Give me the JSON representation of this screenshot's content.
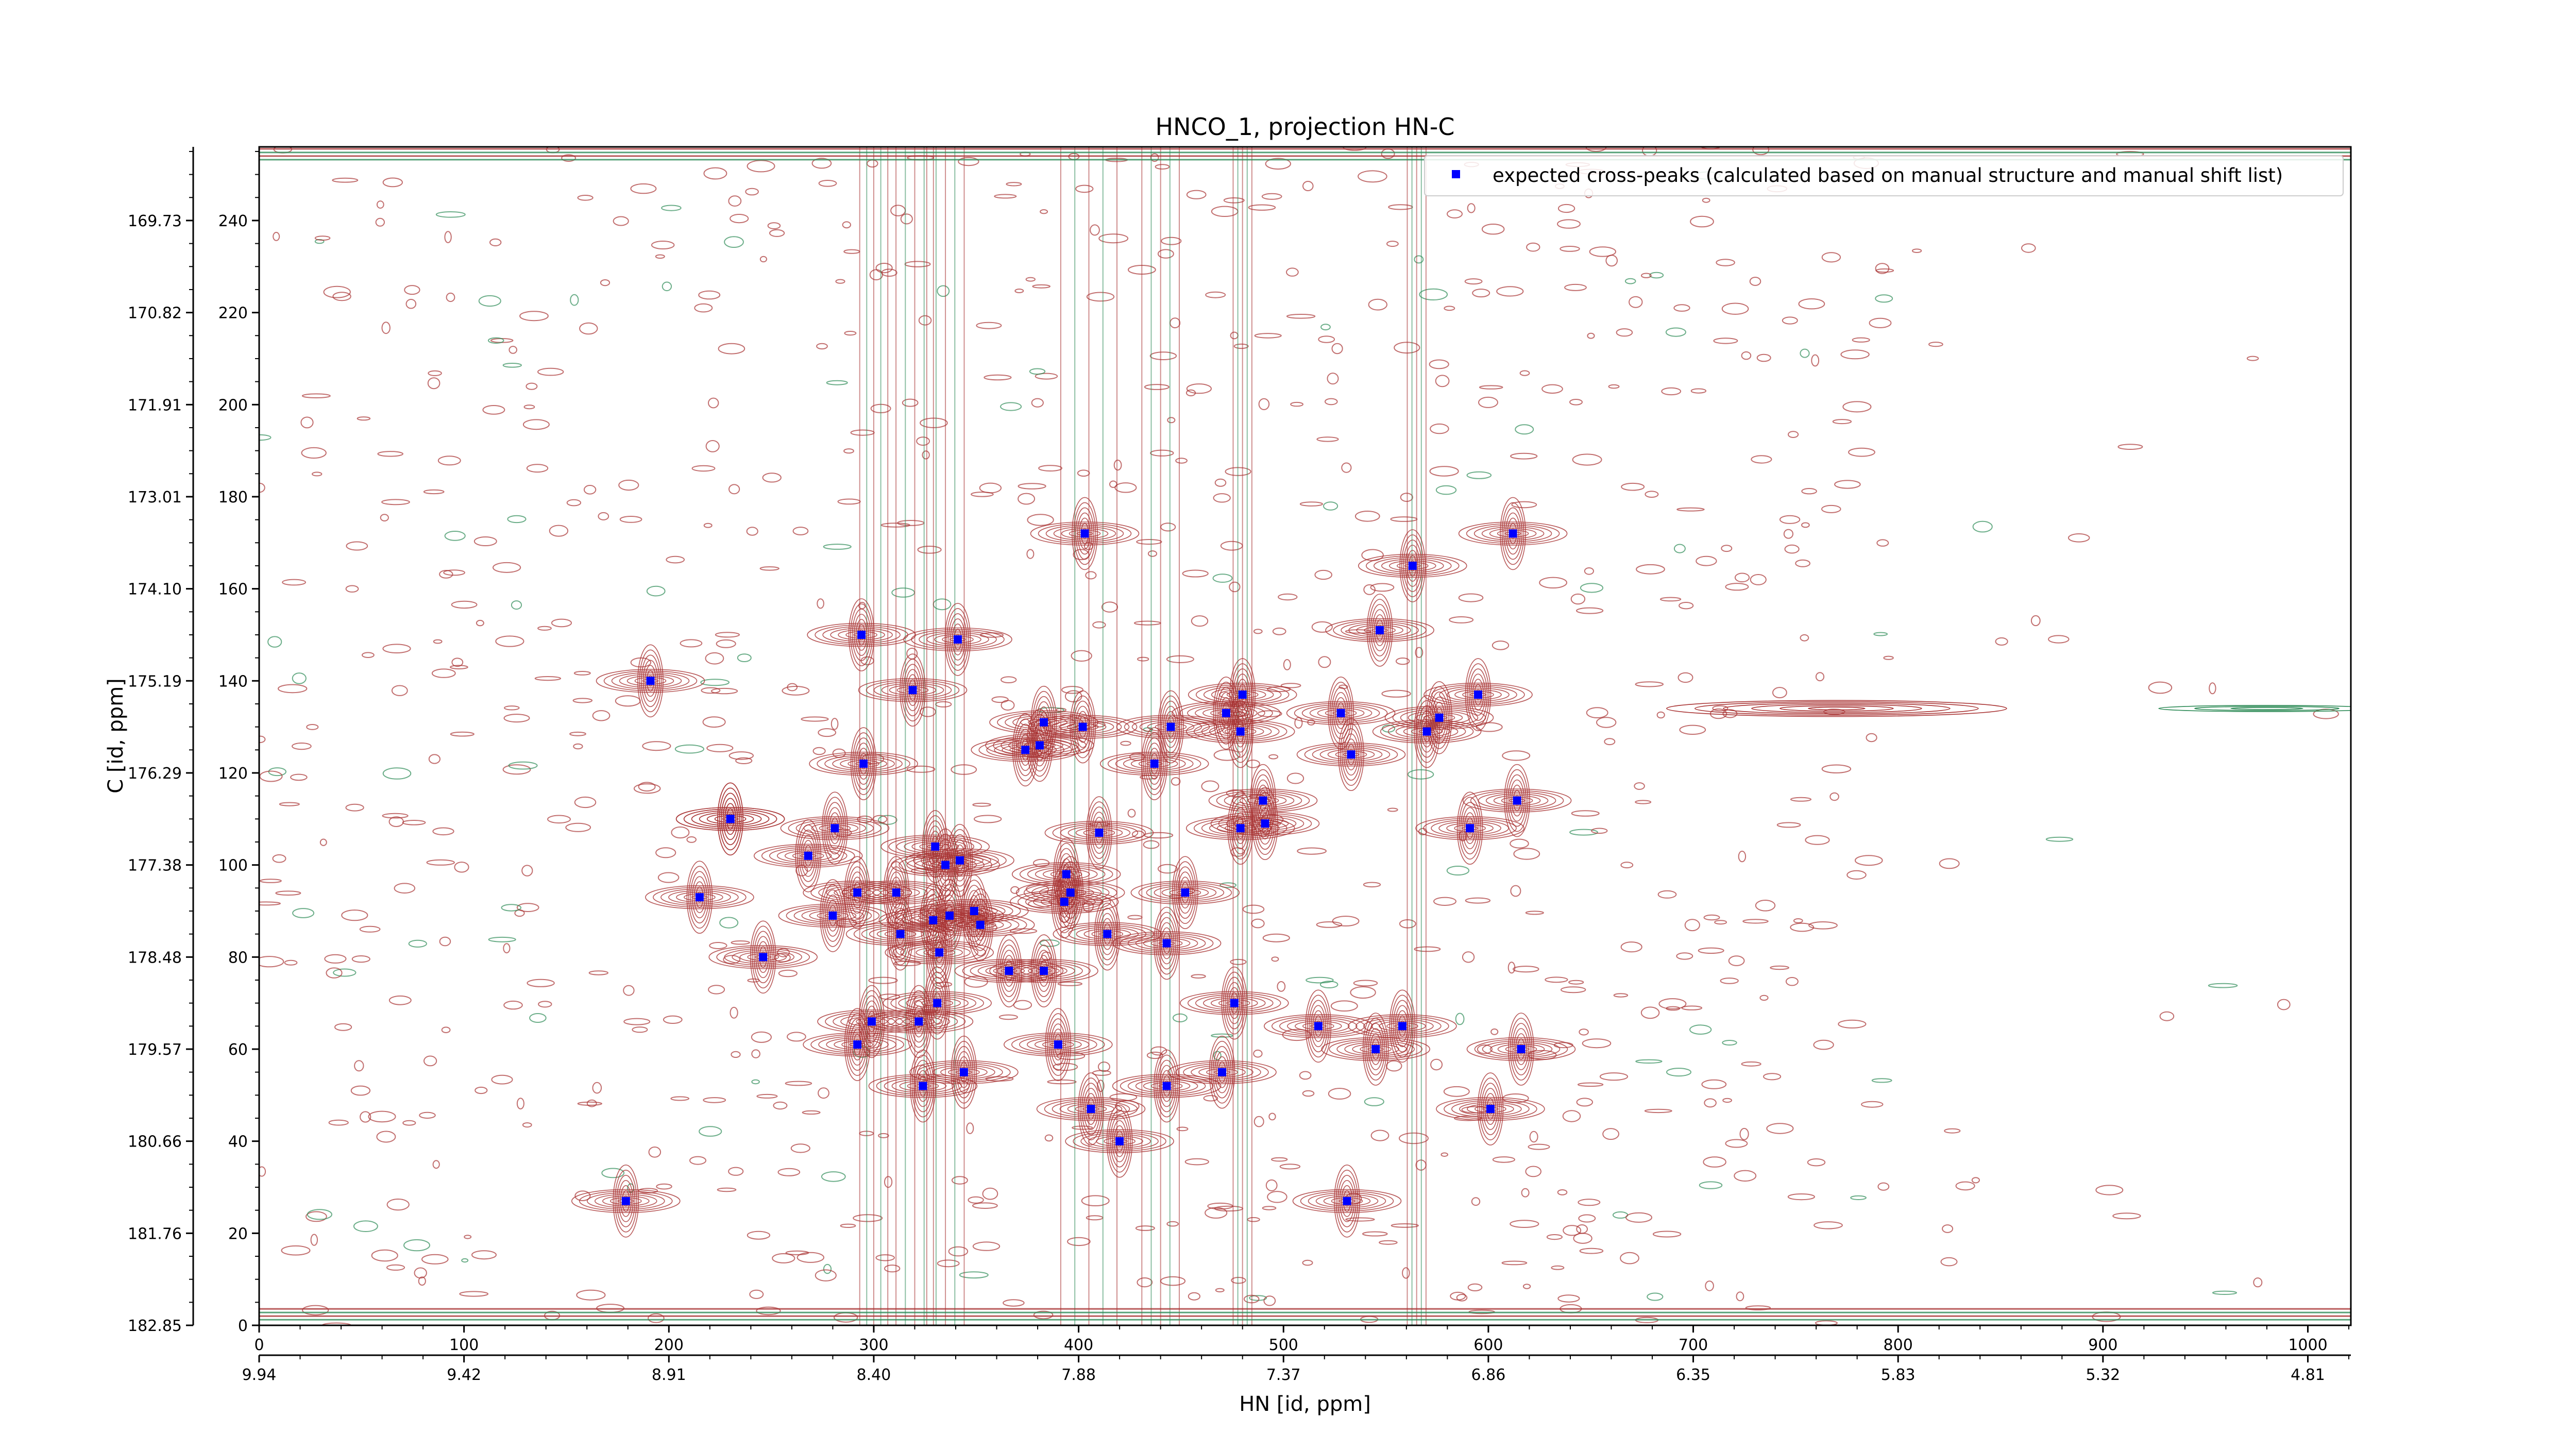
{
  "chart_data": {
    "type": "scatter",
    "title": "HNCO_1, projection HN-C",
    "xlabel": "HN [id, ppm]",
    "ylabel": "C [id, ppm]",
    "xlim": [
      0,
      1021
    ],
    "ylim": [
      0,
      256
    ],
    "x_ticks_index": [
      "0",
      "100",
      "200",
      "300",
      "400",
      "500",
      "600",
      "700",
      "800",
      "900",
      "1000"
    ],
    "x_ticks_ppm": [
      "9.94",
      "9.42",
      "8.91",
      "8.40",
      "7.88",
      "7.37",
      "6.86",
      "6.35",
      "5.83",
      "5.32",
      "4.81"
    ],
    "y_ticks_index": [
      "0",
      "20",
      "40",
      "60",
      "80",
      "100",
      "120",
      "140",
      "160",
      "180",
      "200",
      "220",
      "240"
    ],
    "y_ticks_ppm": [
      "182.85",
      "181.76",
      "180.66",
      "179.57",
      "178.48",
      "177.38",
      "176.29",
      "175.19",
      "174.10",
      "173.01",
      "171.91",
      "170.82",
      "169.73"
    ],
    "legend": {
      "placement": "top-right",
      "entries": [
        "expected cross-peaks (calculated based on manual structure and manual shift list)"
      ]
    },
    "colors": {
      "positive_contours": "#a83232",
      "negative_contours": "#2e8b57",
      "markers": "#0000ff"
    },
    "series": [
      {
        "name": "expected cross-peaks (calculated based on manual structure and manual shift list)",
        "points": [
          [
            191,
            140
          ],
          [
            179,
            27
          ],
          [
            403,
            172
          ],
          [
            612,
            172
          ],
          [
            563,
            165
          ],
          [
            294,
            150
          ],
          [
            547,
            151
          ],
          [
            341,
            149
          ],
          [
            319,
            138
          ],
          [
            480,
            137
          ],
          [
            595,
            137
          ],
          [
            472,
            133
          ],
          [
            528,
            133
          ],
          [
            383,
            131
          ],
          [
            402,
            130
          ],
          [
            445,
            130
          ],
          [
            479,
            129
          ],
          [
            576,
            132
          ],
          [
            570,
            129
          ],
          [
            374,
            125
          ],
          [
            381,
            126
          ],
          [
            533,
            124
          ],
          [
            437,
            122
          ],
          [
            295,
            122
          ],
          [
            614,
            114
          ],
          [
            230,
            110
          ],
          [
            281,
            108
          ],
          [
            410,
            107
          ],
          [
            479,
            108
          ],
          [
            491,
            109
          ],
          [
            591,
            108
          ],
          [
            490,
            114
          ],
          [
            230,
            110
          ],
          [
            268,
            102
          ],
          [
            330,
            104
          ],
          [
            335,
            100
          ],
          [
            342,
            101
          ],
          [
            394,
            98
          ],
          [
            292,
            94
          ],
          [
            393,
            92
          ],
          [
            311,
            94
          ],
          [
            396,
            94
          ],
          [
            452,
            94
          ],
          [
            215,
            93
          ],
          [
            280,
            89
          ],
          [
            337,
            89
          ],
          [
            349,
            90
          ],
          [
            352,
            87
          ],
          [
            329,
            88
          ],
          [
            313,
            85
          ],
          [
            414,
            85
          ],
          [
            443,
            83
          ],
          [
            246,
            80
          ],
          [
            332,
            81
          ],
          [
            366,
            77
          ],
          [
            383,
            77
          ],
          [
            299,
            66
          ],
          [
            322,
            66
          ],
          [
            476,
            70
          ],
          [
            331,
            70
          ],
          [
            517,
            65
          ],
          [
            558,
            65
          ],
          [
            292,
            61
          ],
          [
            390,
            61
          ],
          [
            545,
            60
          ],
          [
            616,
            60
          ],
          [
            344,
            55
          ],
          [
            470,
            55
          ],
          [
            324,
            52
          ],
          [
            443,
            52
          ],
          [
            406,
            47
          ],
          [
            601,
            47
          ],
          [
            420,
            40
          ],
          [
            531,
            27
          ]
        ]
      }
    ]
  }
}
